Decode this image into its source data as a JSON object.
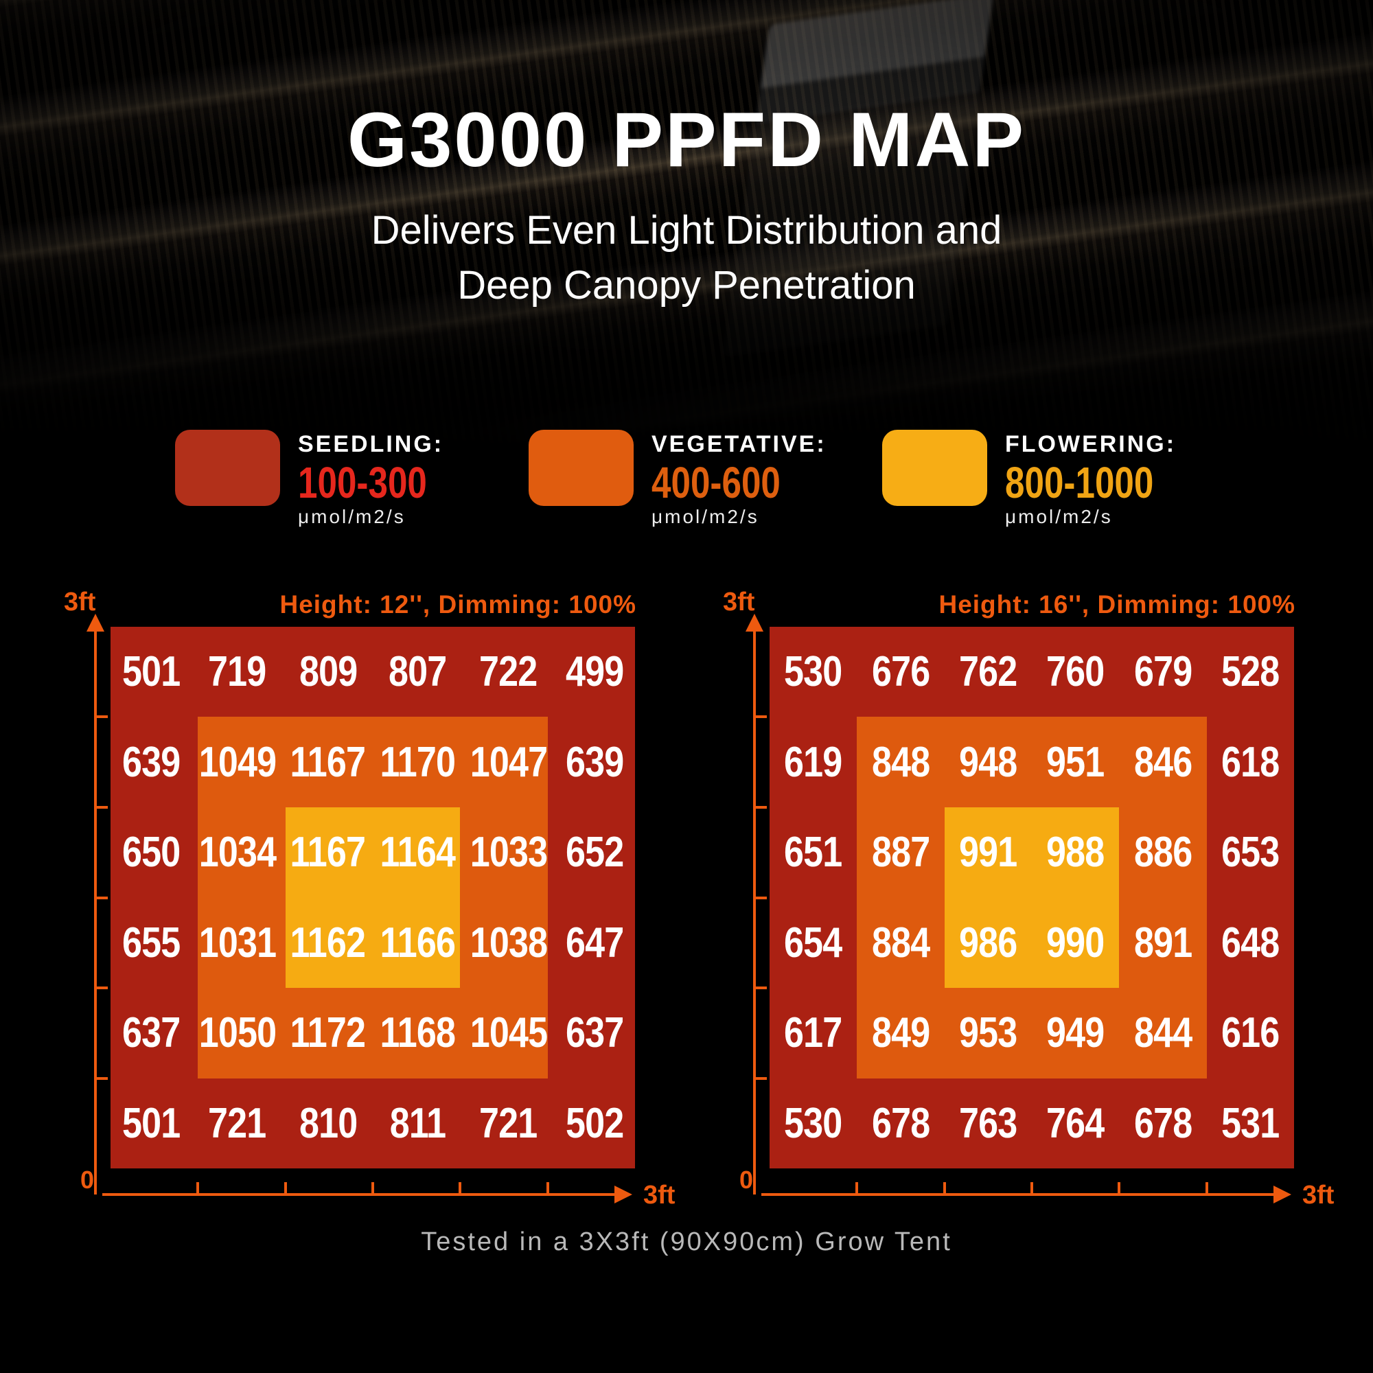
{
  "page": {
    "title": "G3000 PPFD MAP",
    "subtitle_line1": "Delivers Even Light Distribution and",
    "subtitle_line2": "Deep Canopy Penetration",
    "caption": "Tested in a 3X3ft (90X90cm) Grow Tent"
  },
  "colors": {
    "map_bg": "#ab2113",
    "zone_mid": "#de5a0e",
    "zone_inner": "#f6ab12",
    "axis_orange": "#ee5a0f"
  },
  "legend": {
    "items": [
      {
        "label": "SEEDLING:",
        "range": "100-300",
        "unit": "μmol/m2/s",
        "swatch_color": "#b2301a",
        "range_color": "#e6271d"
      },
      {
        "label": "VEGETATIVE:",
        "range": "400-600",
        "unit": "μmol/m2/s",
        "swatch_color": "#e05c0f",
        "range_color": "#de5f0f"
      },
      {
        "label": "FLOWERING:",
        "range": "800-1000",
        "unit": "μmol/m2/s",
        "swatch_color": "#f7ad15",
        "range_color": "#f0a414"
      }
    ]
  },
  "maps": [
    {
      "header": "Height: 12'', Dimming: 100%",
      "y_axis_label": "3ft",
      "origin_label": "0",
      "x_axis_label": "3ft",
      "rows": [
        [
          501,
          719,
          809,
          807,
          722,
          499
        ],
        [
          639,
          1049,
          1167,
          1170,
          1047,
          639
        ],
        [
          650,
          1034,
          1167,
          1164,
          1033,
          652
        ],
        [
          655,
          1031,
          1162,
          1166,
          1038,
          647
        ],
        [
          637,
          1050,
          1172,
          1168,
          1045,
          637
        ],
        [
          501,
          721,
          810,
          811,
          721,
          502
        ]
      ]
    },
    {
      "header": "Height: 16'', Dimming: 100%",
      "y_axis_label": "3ft",
      "origin_label": "0",
      "x_axis_label": "3ft",
      "rows": [
        [
          530,
          676,
          762,
          760,
          679,
          528
        ],
        [
          619,
          848,
          948,
          951,
          846,
          618
        ],
        [
          651,
          887,
          991,
          988,
          886,
          653
        ],
        [
          654,
          884,
          986,
          990,
          891,
          648
        ],
        [
          617,
          849,
          953,
          949,
          844,
          616
        ],
        [
          530,
          678,
          763,
          764,
          678,
          531
        ]
      ]
    }
  ],
  "chart_data": [
    {
      "type": "heatmap",
      "title": "Height: 12'', Dimming: 100%",
      "xlabel": "3ft",
      "ylabel": "3ft",
      "x_range_ft": [
        0,
        3
      ],
      "y_range_ft": [
        0,
        3
      ],
      "unit": "μmol/m2/s",
      "grid_rows_top_to_bottom": [
        [
          501,
          719,
          809,
          807,
          722,
          499
        ],
        [
          639,
          1049,
          1167,
          1170,
          1047,
          639
        ],
        [
          650,
          1034,
          1167,
          1164,
          1033,
          652
        ],
        [
          655,
          1031,
          1162,
          1166,
          1038,
          647
        ],
        [
          637,
          1050,
          1172,
          1168,
          1045,
          637
        ],
        [
          501,
          721,
          810,
          811,
          721,
          502
        ]
      ],
      "color_regions": {
        "outer_6x6": "#ab2113",
        "middle_4x4": "#de5a0e",
        "center_2x2": "#f6ab12"
      }
    },
    {
      "type": "heatmap",
      "title": "Height: 16'', Dimming: 100%",
      "xlabel": "3ft",
      "ylabel": "3ft",
      "x_range_ft": [
        0,
        3
      ],
      "y_range_ft": [
        0,
        3
      ],
      "unit": "μmol/m2/s",
      "grid_rows_top_to_bottom": [
        [
          530,
          676,
          762,
          760,
          679,
          528
        ],
        [
          619,
          848,
          948,
          951,
          846,
          618
        ],
        [
          651,
          887,
          991,
          988,
          886,
          653
        ],
        [
          654,
          884,
          986,
          990,
          891,
          648
        ],
        [
          617,
          849,
          953,
          949,
          844,
          616
        ],
        [
          530,
          678,
          763,
          764,
          678,
          531
        ]
      ],
      "color_regions": {
        "outer_6x6": "#ab2113",
        "middle_4x4": "#de5a0e",
        "center_2x2": "#f6ab12"
      }
    }
  ]
}
